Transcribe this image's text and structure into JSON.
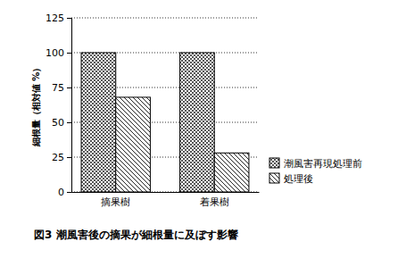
{
  "chart_data": {
    "type": "bar",
    "title": "図3 潮風害後の摘果が細根量に及ぼす影響",
    "y_label": "細根量（相対値 %）",
    "categories": [
      "摘果樹",
      "着果樹"
    ],
    "series": [
      {
        "name": "潮風害再現処理前",
        "color": "#444444",
        "values": [
          100,
          100
        ]
      },
      {
        "name": "処理後",
        "color": "#222222",
        "values": [
          68,
          28
        ]
      }
    ],
    "ylim": [
      0,
      125
    ],
    "yticks": [
      0,
      25,
      50,
      75,
      100,
      125
    ],
    "grid": true,
    "legend": "right"
  }
}
